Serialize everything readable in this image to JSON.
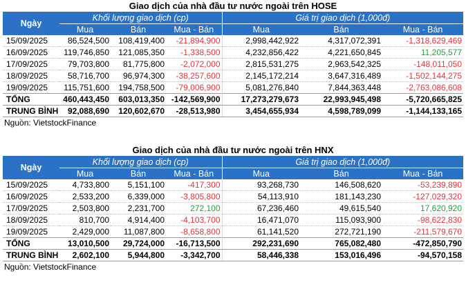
{
  "tables": [
    {
      "title": "Giao dịch của nhà đầu tư nước ngoài trên HOSE",
      "header": {
        "day": "Ngày",
        "volume_group": "Khối lượng giao dịch (cp)",
        "value_group": "Giá trị giao dịch (1,000đ)",
        "buy": "Mua",
        "sell": "Bán",
        "net": "Mua - Bán"
      },
      "rows": [
        {
          "date": "15/09/2025",
          "vol_buy": "86,524,500",
          "vol_sell": "108,419,400",
          "vol_net": "-21,894,900",
          "vol_net_sign": "neg",
          "val_buy": "2,998,442,922",
          "val_sell": "4,317,072,391",
          "val_net": "-1,318,629,469",
          "val_net_sign": "neg"
        },
        {
          "date": "16/09/2025",
          "vol_buy": "119,746,850",
          "vol_sell": "121,085,350",
          "vol_net": "-1,338,500",
          "vol_net_sign": "neg",
          "val_buy": "4,232,856,422",
          "val_sell": "4,221,650,845",
          "val_net": "11,205,577",
          "val_net_sign": "pos"
        },
        {
          "date": "17/09/2025",
          "vol_buy": "79,703,800",
          "vol_sell": "81,775,800",
          "vol_net": "-2,072,000",
          "vol_net_sign": "neg",
          "val_buy": "2,815,531,275",
          "val_sell": "2,963,542,325",
          "val_net": "-148,011,050",
          "val_net_sign": "neg"
        },
        {
          "date": "18/09/2025",
          "vol_buy": "58,716,700",
          "vol_sell": "96,974,300",
          "vol_net": "-38,257,600",
          "vol_net_sign": "neg",
          "val_buy": "2,145,172,214",
          "val_sell": "3,647,316,489",
          "val_net": "-1,502,144,275",
          "val_net_sign": "neg"
        },
        {
          "date": "19/09/2025",
          "vol_buy": "115,751,600",
          "vol_sell": "194,758,500",
          "vol_net": "-79,006,900",
          "vol_net_sign": "neg",
          "val_buy": "5,081,276,840",
          "val_sell": "7,844,363,448",
          "val_net": "-2,763,086,608",
          "val_net_sign": "neg"
        }
      ],
      "total": {
        "label": "TỔNG",
        "vol_buy": "460,443,450",
        "vol_sell": "603,013,350",
        "vol_net": "-142,569,900",
        "val_buy": "17,273,279,673",
        "val_sell": "22,993,945,498",
        "val_net": "-5,720,665,825"
      },
      "average": {
        "label": "TRUNG BÌNH",
        "vol_buy": "92,088,690",
        "vol_sell": "120,602,670",
        "vol_net": "-28,513,980",
        "val_buy": "3,454,655,934",
        "val_sell": "4,598,789,099",
        "val_net": "-1,144,133,165"
      },
      "source": "Nguồn: VietstockFinance"
    },
    {
      "title": "Giao dịch của nhà đầu tư nước ngoài trên HNX",
      "header": {
        "day": "Ngày",
        "volume_group": "Khối lượng giao dịch (cp)",
        "value_group": "Giá trị giao dịch (1,000đ)",
        "buy": "Mua",
        "sell": "Bán",
        "net": "Mua - Bán"
      },
      "rows": [
        {
          "date": "15/09/2025",
          "vol_buy": "4,733,800",
          "vol_sell": "5,151,100",
          "vol_net": "-417,300",
          "vol_net_sign": "neg",
          "val_buy": "93,268,730",
          "val_sell": "146,508,620",
          "val_net": "-53,239,890",
          "val_net_sign": "neg"
        },
        {
          "date": "16/09/2025",
          "vol_buy": "2,533,200",
          "vol_sell": "6,339,000",
          "vol_net": "-3,805,800",
          "vol_net_sign": "neg",
          "val_buy": "54,113,910",
          "val_sell": "181,143,230",
          "val_net": "-127,029,320",
          "val_net_sign": "neg"
        },
        {
          "date": "17/09/2025",
          "vol_buy": "2,503,800",
          "vol_sell": "2,231,700",
          "vol_net": "272,100",
          "vol_net_sign": "pos",
          "val_buy": "67,236,460",
          "val_sell": "49,615,540",
          "val_net": "17,620,920",
          "val_net_sign": "pos"
        },
        {
          "date": "18/09/2025",
          "vol_buy": "810,700",
          "vol_sell": "4,914,400",
          "vol_net": "-4,103,700",
          "vol_net_sign": "neg",
          "val_buy": "16,471,070",
          "val_sell": "115,093,900",
          "val_net": "-98,622,830",
          "val_net_sign": "neg"
        },
        {
          "date": "19/09/2025",
          "vol_buy": "2,429,000",
          "vol_sell": "11,087,800",
          "vol_net": "-8,658,800",
          "vol_net_sign": "neg",
          "val_buy": "61,141,520",
          "val_sell": "272,721,190",
          "val_net": "-211,579,670",
          "val_net_sign": "neg"
        }
      ],
      "total": {
        "label": "TỔNG",
        "vol_buy": "13,010,500",
        "vol_sell": "29,724,000",
        "vol_net": "-16,713,500",
        "val_buy": "292,231,690",
        "val_sell": "765,082,480",
        "val_net": "-472,850,790"
      },
      "average": {
        "label": "TRUNG BÌNH",
        "vol_buy": "2,602,100",
        "vol_sell": "5,944,800",
        "vol_net": "-3,342,700",
        "val_buy": "58,446,338",
        "val_sell": "153,016,496",
        "val_net": "-94,570,158"
      },
      "source": "Nguồn: VietstockFinance"
    }
  ]
}
